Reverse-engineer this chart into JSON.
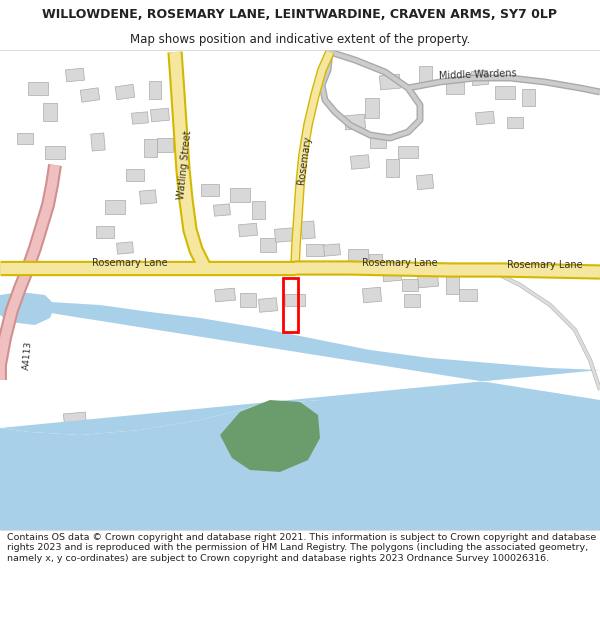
{
  "title": "WILLOWDENE, ROSEMARY LANE, LEINTWARDINE, CRAVEN ARMS, SY7 0LP",
  "subtitle": "Map shows position and indicative extent of the property.",
  "footer": "Contains OS data © Crown copyright and database right 2021. This information is subject to Crown copyright and database rights 2023 and is reproduced with the permission of HM Land Registry. The polygons (including the associated geometry, namely x, y co-ordinates) are subject to Crown copyright and database rights 2023 Ordnance Survey 100026316.",
  "bg_color": "#ffffff",
  "map_bg": "#f0f0f0",
  "road_color": "#f5e6a0",
  "road_border": "#d4b800",
  "pink_road_color": "#f0c0c0",
  "pink_road_border": "#d09090",
  "water_color": "#a8d0e8",
  "green_color": "#6b9c6b",
  "building_color": "#d8d8d8",
  "building_border": "#aaaaaa",
  "plot_color": "#ff0000",
  "text_color": "#222222",
  "thin_road_color": "#cccccc",
  "thin_road_border": "#aaaaaa"
}
